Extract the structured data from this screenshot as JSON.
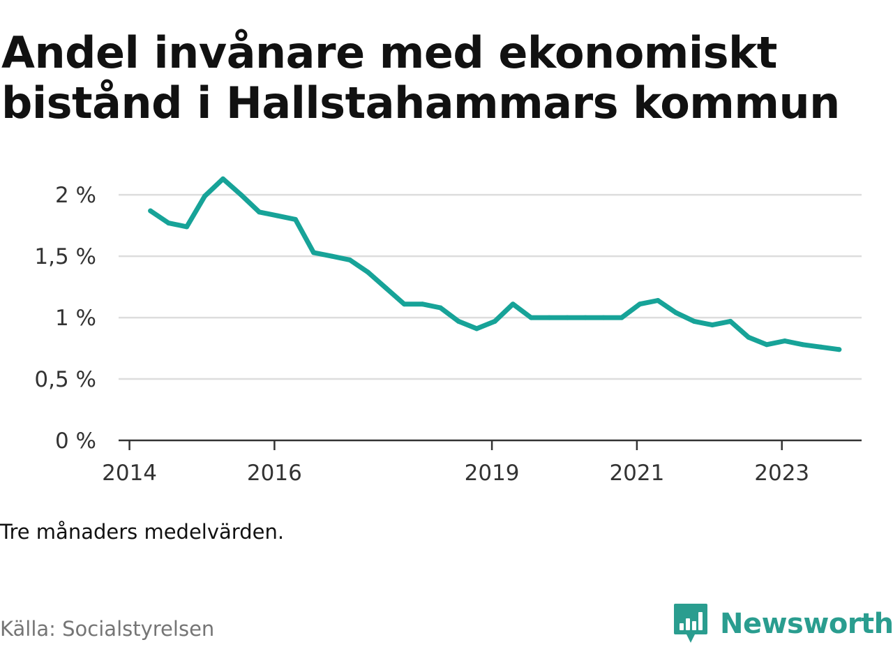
{
  "title": "Andel invånare med ekonomiskt bistånd i Hallstahammars kommun",
  "note": "Tre månaders medelvärden.",
  "source": "Källa: Socialstyrelsen",
  "brand": {
    "name": "Newsworthy",
    "icon": "newsworthy-logo-icon",
    "color": "#2a9d8f"
  },
  "colors": {
    "line": "#17a398",
    "grid": "#dddddd",
    "axis": "#333333",
    "text": "#333333"
  },
  "chart_data": {
    "type": "line",
    "title": "Andel invånare med ekonomiskt bistånd i Hallstahammars kommun",
    "xlabel": "",
    "ylabel": "",
    "x_tick_labels": [
      "2014",
      "2016",
      "2019",
      "2021",
      "2023"
    ],
    "x_ticks": [
      2014,
      2016,
      2019,
      2021,
      2023
    ],
    "y_tick_labels": [
      "0 %",
      "0,5 %",
      "1 %",
      "1,5 %",
      "2 %"
    ],
    "y_ticks": [
      0,
      0.5,
      1,
      1.5,
      2
    ],
    "xlim": [
      2013.85,
      2024.1
    ],
    "ylim": [
      0,
      2.2
    ],
    "grid": true,
    "legend": "none",
    "series": [
      {
        "x": [
          2014.29,
          2014.54,
          2014.79,
          2015.04,
          2015.29,
          2015.54,
          2015.79,
          2016.04,
          2016.29,
          2016.54,
          2016.79,
          2017.04,
          2017.29,
          2017.54,
          2017.79,
          2018.04,
          2018.29,
          2018.54,
          2018.79,
          2019.04,
          2019.29,
          2019.54,
          2019.79,
          2020.04,
          2020.29,
          2020.54,
          2020.79,
          2021.04,
          2021.29,
          2021.54,
          2021.79,
          2022.04,
          2022.29,
          2022.54,
          2022.79,
          2023.04,
          2023.29,
          2023.54,
          2023.79
        ],
        "values": [
          1.87,
          1.77,
          1.74,
          1.99,
          2.13,
          2.0,
          1.86,
          1.83,
          1.8,
          1.53,
          1.5,
          1.47,
          1.37,
          1.24,
          1.11,
          1.11,
          1.08,
          0.97,
          0.91,
          0.97,
          1.11,
          1.0,
          1.0,
          1.0,
          1.0,
          1.0,
          1.0,
          1.11,
          1.14,
          1.04,
          0.97,
          0.94,
          0.97,
          0.84,
          0.78,
          0.81,
          0.78,
          0.76,
          0.74
        ]
      }
    ]
  }
}
